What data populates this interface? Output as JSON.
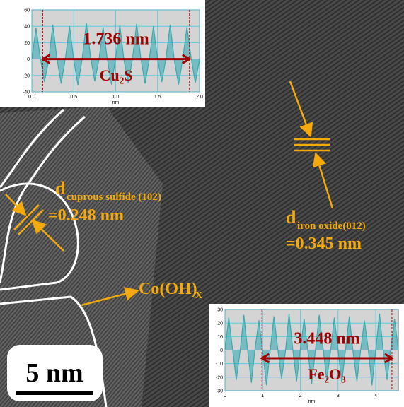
{
  "chart_data": [
    {
      "type": "line",
      "xlabel": "nm",
      "x": [
        0,
        0.05,
        0.1,
        0.15,
        0.2,
        0.25,
        0.3,
        0.35,
        0.4,
        0.45,
        0.5,
        0.55,
        0.6,
        0.65,
        0.7,
        0.75,
        0.8,
        0.85,
        0.9,
        0.95,
        1,
        1.05,
        1.1,
        1.15,
        1.2,
        1.25,
        1.3,
        1.35,
        1.4,
        1.45,
        1.5,
        1.55,
        1.6,
        1.65,
        1.7,
        1.75,
        1.8,
        1.85,
        1.9,
        1.95,
        2
      ],
      "series": [
        {
          "color": "#3aaab3",
          "values": [
            0,
            38,
            2,
            -28,
            -2,
            42,
            0,
            -30,
            1,
            40,
            -1,
            -32,
            0,
            44,
            3,
            -27,
            -1,
            39,
            0,
            -31,
            2,
            41,
            -2,
            -29,
            0,
            43,
            1,
            -30,
            -1,
            40,
            0,
            -28,
            1,
            42,
            -2,
            -31,
            0,
            39,
            1,
            -29,
            0
          ]
        }
      ],
      "xlim": [
        0,
        2
      ],
      "xticks": [
        {
          "value": 0,
          "label": "0.0"
        },
        0.5,
        {
          "value": 1,
          "label": "1.0"
        },
        1.5,
        {
          "value": 2,
          "label": "2.0"
        }
      ],
      "ylim": [
        -40,
        60
      ],
      "yticks": [
        -40,
        -20,
        0,
        20,
        40,
        60
      ],
      "grid": true,
      "markers": [
        0.13,
        1.88
      ],
      "annotations": [
        "1.736 nm",
        "Cu₂S"
      ]
    },
    {
      "type": "line",
      "xlabel": "nm",
      "x": [
        0,
        0.1,
        0.2,
        0.3,
        0.4,
        0.5,
        0.6,
        0.7,
        0.8,
        0.9,
        1,
        1.1,
        1.2,
        1.3,
        1.4,
        1.5,
        1.6,
        1.7,
        1.8,
        1.9,
        2,
        2.1,
        2.2,
        2.3,
        2.4,
        2.5,
        2.6,
        2.7,
        2.8,
        2.9,
        3,
        3.1,
        3.2,
        3.3,
        3.4,
        3.5,
        3.6,
        3.7,
        3.8,
        3.9,
        4,
        4.1,
        4.2,
        4.3,
        4.4,
        4.5,
        4.6
      ],
      "series": [
        {
          "color": "#3aaab3",
          "values": [
            0,
            24,
            1,
            -22,
            -1,
            26,
            0,
            -24,
            2,
            22,
            -1,
            -26,
            0,
            25,
            1,
            -21,
            -2,
            27,
            0,
            -23,
            1,
            23,
            -1,
            -25,
            0,
            26,
            2,
            -22,
            -1,
            24,
            0,
            -24,
            1,
            25,
            -2,
            -23,
            0,
            22,
            1,
            -26,
            0,
            27,
            -1,
            -22,
            1,
            23,
            0
          ]
        }
      ],
      "xlim": [
        0,
        4.6
      ],
      "xticks": [
        0,
        1,
        2,
        3,
        4
      ],
      "ylim": [
        -30,
        30
      ],
      "yticks": [
        -30,
        -20,
        -10,
        0,
        10,
        20,
        30
      ],
      "grid": true,
      "markers": [
        0.98,
        4.43
      ],
      "annotations": [
        "3.448 nm",
        "Fe₂O₃"
      ]
    }
  ],
  "figure": {
    "d1": "d",
    "d1_sub": "cuprous sulfide (102)",
    "d1_value": "=0.248 nm",
    "d2": "d",
    "d2_sub": "iron oxide(012)",
    "d2_value": "=0.345 nm",
    "phase": "Co(OH)",
    "phase_sub": "X",
    "scale_bar": "5 nm"
  }
}
